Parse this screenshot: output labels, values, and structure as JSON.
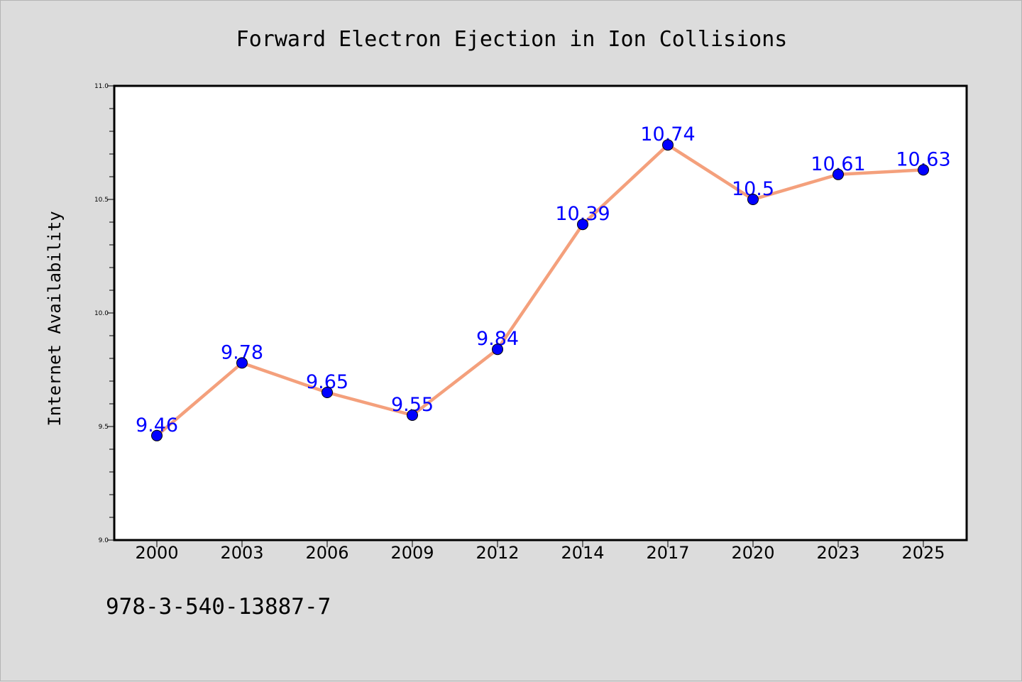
{
  "chart_data": {
    "type": "line",
    "title": "Forward Electron Ejection in Ion Collisions",
    "xlabel": "",
    "ylabel": "Internet Availability",
    "categories": [
      "2000",
      "2003",
      "2006",
      "2009",
      "2012",
      "2014",
      "2017",
      "2020",
      "2023",
      "2025"
    ],
    "series": [
      {
        "values": [
          9.46,
          9.78,
          9.65,
          9.55,
          9.84,
          10.39,
          10.74,
          10.5,
          10.61,
          10.63
        ]
      }
    ],
    "data_labels": [
      "9.46",
      "9.78",
      "9.65",
      "9.55",
      "9.84",
      "10.39",
      "10.74",
      "10.5",
      "10.61",
      "10.63"
    ],
    "y_tick_labels": [
      "9.0",
      "9.5",
      "10.0",
      "10.5",
      "11.0"
    ],
    "y_ticks": [
      9.0,
      9.5,
      10.0,
      10.5,
      11.0
    ],
    "ylim": [
      9.0,
      11.0
    ],
    "grid": false,
    "legend": "none",
    "colors": {
      "line": "#f4a07c",
      "marker": "#0000ff",
      "data_label": "#0000ff",
      "plot_background": "#ffffff",
      "figure_background": "#dcdcdc"
    }
  },
  "footer_text": "978-3-540-13887-7"
}
